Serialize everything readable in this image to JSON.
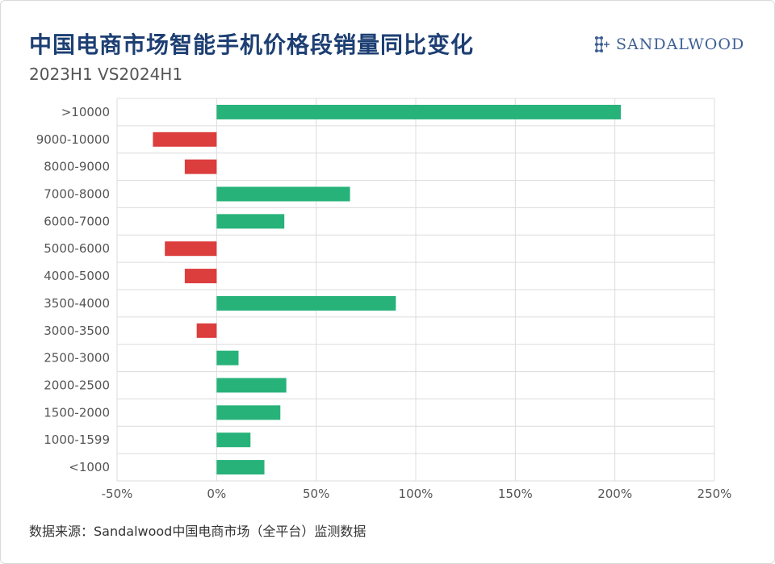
{
  "header": {
    "title": "中国电商市场智能手机价格段销量同比变化",
    "subtitle": "2023H1 VS2024H1",
    "brand": "SANDALWOOD"
  },
  "footer": {
    "source": "数据来源：Sandalwood中国电商市场（全平台）监测数据"
  },
  "colors": {
    "positive": "#27b27a",
    "negative": "#dc3d3d",
    "title": "#1d3f73",
    "grid": "#dcdcdc"
  },
  "chart_data": {
    "type": "bar",
    "orientation": "horizontal",
    "title": "中国电商市场智能手机价格段销量同比变化",
    "subtitle": "2023H1 VS2024H1",
    "xlabel": "",
    "ylabel": "",
    "xlim": [
      -50,
      250
    ],
    "xticks": [
      -50,
      0,
      50,
      100,
      150,
      200,
      250
    ],
    "xtick_labels": [
      "-50%",
      "0%",
      "50%",
      "100%",
      "150%",
      "200%",
      "250%"
    ],
    "grid": true,
    "categories": [
      "<1000",
      "1000-1599",
      "1500-2000",
      "2000-2500",
      "2500-3000",
      "3000-3500",
      "3500-4000",
      "4000-5000",
      "5000-6000",
      "6000-7000",
      "7000-8000",
      "8000-9000",
      "9000-10000",
      ">10000"
    ],
    "values": [
      24,
      17,
      32,
      35,
      11,
      -10,
      90,
      -16,
      -26,
      34,
      67,
      -16,
      -32,
      203
    ],
    "unit": "%"
  }
}
